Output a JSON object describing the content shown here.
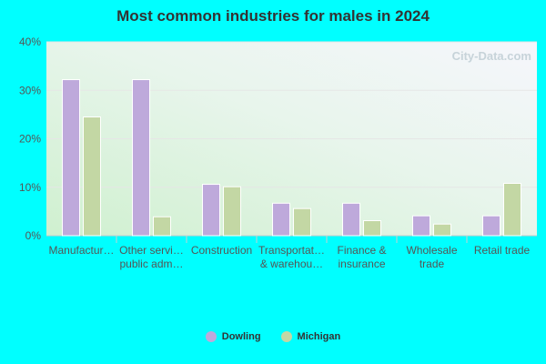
{
  "colors": {
    "page_bg": "#00FFFF",
    "series_1": "#BEA9DB",
    "series_2": "#C3D7A4",
    "grid": "#E6E6E6"
  },
  "watermark": "City-Data.com",
  "chart_data": {
    "type": "bar",
    "title": "Most common industries for males in 2024",
    "xlabel": "",
    "ylabel": "",
    "ylim": [
      0,
      40
    ],
    "y_ticks": [
      "0%",
      "10%",
      "20%",
      "30%",
      "40%"
    ],
    "y_tick_values": [
      0,
      10,
      20,
      30,
      40
    ],
    "categories": [
      [
        "Manufactur…"
      ],
      [
        "Other servi…",
        "public adm…"
      ],
      [
        "Construction"
      ],
      [
        "Transportat…",
        "& warehou…"
      ],
      [
        "Finance &",
        "insurance"
      ],
      [
        "Wholesale",
        "trade"
      ],
      [
        "Retail trade"
      ]
    ],
    "series": [
      {
        "name": "Dowling",
        "values": [
          32.2,
          32.2,
          10.6,
          6.7,
          6.7,
          4.1,
          4.1
        ]
      },
      {
        "name": "Michigan",
        "values": [
          24.5,
          3.9,
          10.1,
          5.6,
          3.1,
          2.4,
          10.8
        ]
      }
    ],
    "grid": true,
    "legend": "bottom-center"
  }
}
